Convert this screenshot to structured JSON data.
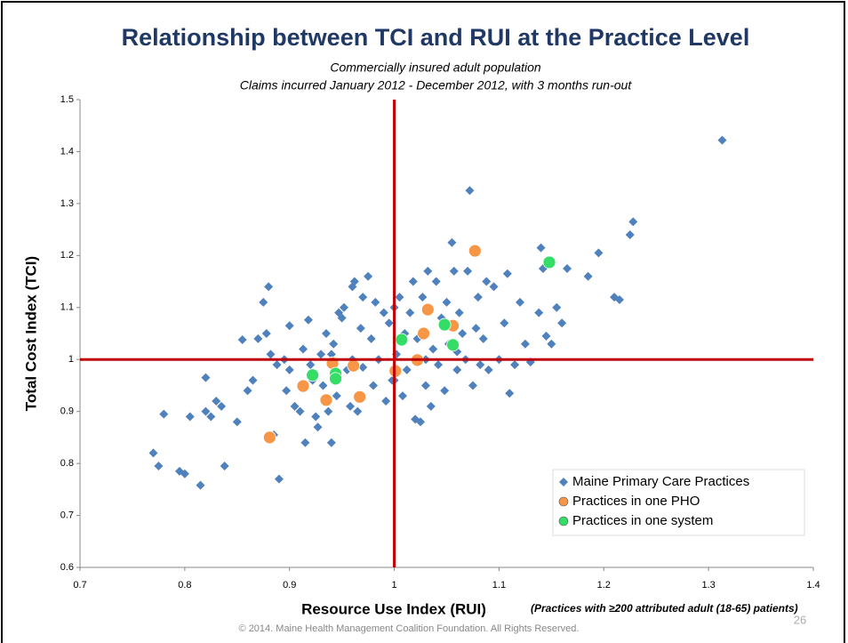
{
  "chart_data": {
    "type": "scatter",
    "title": "Relationship between TCI and RUI at the Practice Level",
    "subtitle": [
      "Commercially insured adult population",
      "Claims incurred January 2012 - December 2012, with 3 months run-out"
    ],
    "x_label": "Resource Use Index (RUI)",
    "y_label": "Total Cost Index (TCI)",
    "annotation": "(Practices with ≥200 attributed  adult (18-65) patients)",
    "footer": "© 2014. Maine Health Management Coalition Foundation.  All Rights Reserved.",
    "page_number": "26",
    "xlim": [
      0.7,
      1.4
    ],
    "xticks": [
      0.7,
      0.8,
      0.9,
      1,
      1.1,
      1.2,
      1.3,
      1.4
    ],
    "ylim": [
      0.6,
      1.5
    ],
    "yticks": [
      0.6,
      0.7,
      0.8,
      0.9,
      1,
      1.1,
      1.2,
      1.3,
      1.4,
      1.5
    ],
    "reference_lines": {
      "x": 1,
      "y": 1,
      "color": "#c00000"
    },
    "grid": false,
    "legend": "lower right",
    "series": [
      {
        "name": "Maine Primary Care Practices",
        "color": "#4f81bd",
        "marker": "diamond",
        "x": [
          0.77,
          0.775,
          0.78,
          0.795,
          0.8,
          0.805,
          0.815,
          0.82,
          0.82,
          0.825,
          0.83,
          0.835,
          0.838,
          0.85,
          0.855,
          0.86,
          0.865,
          0.87,
          0.875,
          0.878,
          0.88,
          0.882,
          0.885,
          0.888,
          0.89,
          0.895,
          0.897,
          0.9,
          0.9,
          0.905,
          0.91,
          0.913,
          0.915,
          0.918,
          0.92,
          0.922,
          0.925,
          0.927,
          0.93,
          0.932,
          0.935,
          0.937,
          0.94,
          0.942,
          0.945,
          0.947,
          0.95,
          0.952,
          0.955,
          0.958,
          0.96,
          0.962,
          0.965,
          0.968,
          0.97,
          0.975,
          0.978,
          0.98,
          0.982,
          0.985,
          0.99,
          0.992,
          0.995,
          0.998,
          1.0,
          1.002,
          1.005,
          1.008,
          1.01,
          1.012,
          1.015,
          1.018,
          1.02,
          1.022,
          1.025,
          1.027,
          1.03,
          1.032,
          1.035,
          1.037,
          1.04,
          1.042,
          1.045,
          1.048,
          1.05,
          1.052,
          1.055,
          1.057,
          1.06,
          1.062,
          1.065,
          1.068,
          1.07,
          1.072,
          1.075,
          1.078,
          1.08,
          1.082,
          1.085,
          1.088,
          1.09,
          1.095,
          1.1,
          1.105,
          1.108,
          1.11,
          1.115,
          1.12,
          1.125,
          1.13,
          1.138,
          1.14,
          1.142,
          1.145,
          1.15,
          1.155,
          1.16,
          1.165,
          1.185,
          1.195,
          1.21,
          1.215,
          1.225,
          1.228,
          1.313,
          0.96,
          1.0,
          1.03,
          0.97,
          1.06,
          0.94
        ],
        "values": [
          0.82,
          0.795,
          0.895,
          0.785,
          0.78,
          0.89,
          0.758,
          0.9,
          0.965,
          0.89,
          0.92,
          0.91,
          0.795,
          0.88,
          1.038,
          0.94,
          0.96,
          1.04,
          1.11,
          1.05,
          1.14,
          1.01,
          0.855,
          0.99,
          0.77,
          1.0,
          0.94,
          0.98,
          1.065,
          0.91,
          0.9,
          1.02,
          0.84,
          1.076,
          0.99,
          0.96,
          0.89,
          0.87,
          1.01,
          0.95,
          1.05,
          0.9,
          0.84,
          1.03,
          0.93,
          1.09,
          1.08,
          1.1,
          0.98,
          0.91,
          1.14,
          1.15,
          0.9,
          1.06,
          1.12,
          1.16,
          1.04,
          0.95,
          1.11,
          1.0,
          1.09,
          0.92,
          1.07,
          0.96,
          1.1,
          1.01,
          1.12,
          0.93,
          1.05,
          0.98,
          1.09,
          1.15,
          0.885,
          1.04,
          0.88,
          1.12,
          0.95,
          1.17,
          0.91,
          1.02,
          1.15,
          0.99,
          1.08,
          0.94,
          1.11,
          1.03,
          1.225,
          1.17,
          0.98,
          1.09,
          1.05,
          1.0,
          1.17,
          1.325,
          0.95,
          1.06,
          1.12,
          0.99,
          1.04,
          1.15,
          0.98,
          1.14,
          1.0,
          1.07,
          1.165,
          0.935,
          0.99,
          1.11,
          1.03,
          0.995,
          1.09,
          1.215,
          1.175,
          1.045,
          1.03,
          1.1,
          1.07,
          1.175,
          1.16,
          1.205,
          1.12,
          1.115,
          1.24,
          1.265,
          1.422,
          1.0,
          0.96,
          1.0,
          0.985,
          1.015,
          1.01
        ]
      },
      {
        "name": "Practices in one PHO",
        "color": "#f79646",
        "marker": "circle",
        "x": [
          0.881,
          0.913,
          0.935,
          0.941,
          0.961,
          0.967,
          1.001,
          1.022,
          1.028,
          1.032,
          1.056,
          1.077
        ],
        "values": [
          0.85,
          0.949,
          0.922,
          0.993,
          0.988,
          0.928,
          0.978,
          0.999,
          1.05,
          1.096,
          1.065,
          1.209
        ]
      },
      {
        "name": "Practices in one system",
        "color": "#33dd66",
        "marker": "circle",
        "x": [
          0.922,
          0.944,
          0.944,
          1.007,
          1.048,
          1.056,
          1.148
        ],
        "values": [
          0.97,
          0.973,
          0.963,
          1.038,
          1.067,
          1.028,
          1.187
        ]
      }
    ]
  }
}
